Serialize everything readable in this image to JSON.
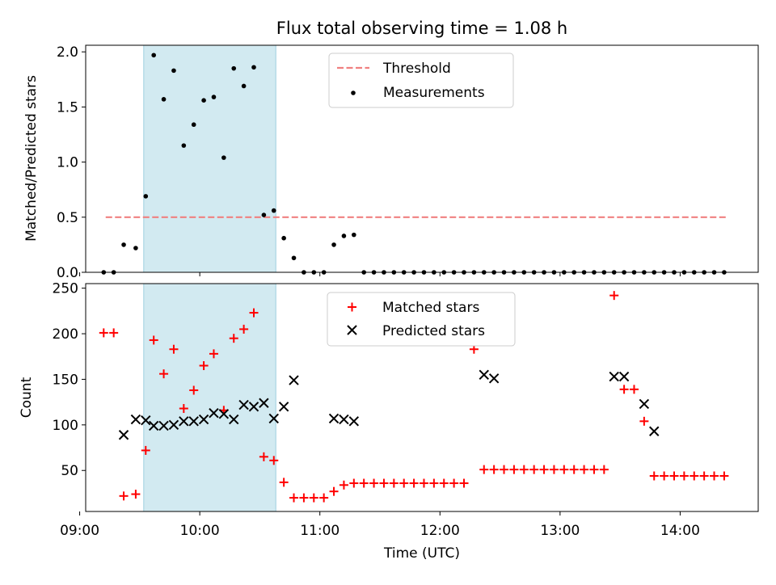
{
  "chart_data": {
    "title": "Flux total observing time = 1.08 h",
    "colors": {
      "threshold": "#f08080",
      "shade": "#add8e6",
      "matched": "#ff0000",
      "predicted": "#000000",
      "measurement": "#000000"
    },
    "shaded_interval": [
      "09:32",
      "10:38"
    ],
    "x_axis": {
      "label": "Time (UTC)",
      "range": [
        "09:03",
        "14:39"
      ],
      "ticks": [
        "09:00",
        "10:00",
        "11:00",
        "12:00",
        "13:00",
        "14:00"
      ]
    },
    "panels": [
      {
        "type": "scatter",
        "ylabel": "Matched/Predicted stars",
        "ylim": [
          0,
          2.06
        ],
        "yticks": [
          "0.0",
          "0.5",
          "1.0",
          "1.5",
          "2.0"
        ],
        "legend": {
          "position": "top-center",
          "threshold_label": "Threshold",
          "measurements_label": "Measurements"
        },
        "threshold": {
          "value": 0.5,
          "x_range": [
            "09:13",
            "14:23"
          ]
        },
        "series": [
          {
            "name": "Measurements",
            "x": [
              "09:12",
              "09:17",
              "09:22",
              "09:28",
              "09:33",
              "09:37",
              "09:42",
              "09:47",
              "09:52",
              "09:57",
              "10:02",
              "10:07",
              "10:12",
              "10:17",
              "10:22",
              "10:27",
              "10:32",
              "10:37",
              "10:42",
              "10:47",
              "10:52",
              "10:57",
              "11:02",
              "11:07",
              "11:12",
              "11:17",
              "11:22",
              "11:27",
              "11:32",
              "11:37",
              "11:42",
              "11:47",
              "11:52",
              "11:57",
              "12:02",
              "12:07",
              "12:12",
              "12:17",
              "12:22",
              "12:27",
              "12:32",
              "12:37",
              "12:42",
              "12:47",
              "12:52",
              "12:57",
              "13:02",
              "13:07",
              "13:12",
              "13:17",
              "13:22",
              "13:27",
              "13:32",
              "13:37",
              "13:42",
              "13:47",
              "13:52",
              "13:57",
              "14:02",
              "14:07",
              "14:12",
              "14:17",
              "14:22"
            ],
            "values": [
              0,
              0,
              0.25,
              0.22,
              0.69,
              1.97,
              1.57,
              1.83,
              1.15,
              1.34,
              1.56,
              1.59,
              1.04,
              1.85,
              1.69,
              1.86,
              0.52,
              0.56,
              0.31,
              0.13,
              0,
              0,
              0,
              0.25,
              0.33,
              0.34,
              0,
              0,
              0,
              0,
              0,
              0,
              0,
              0,
              0,
              0,
              0,
              0,
              0,
              0,
              0,
              0,
              0,
              0,
              0,
              0,
              0,
              0,
              0,
              0,
              0,
              0,
              0,
              0,
              0,
              0,
              0,
              0,
              0,
              0,
              0,
              0,
              0
            ]
          }
        ]
      },
      {
        "type": "scatter",
        "ylabel": "Count",
        "ylim": [
          5,
          255
        ],
        "yticks": [
          "50",
          "100",
          "150",
          "200",
          "250"
        ],
        "legend": {
          "position": "top-center",
          "matched_label": "Matched stars",
          "predicted_label": "Predicted stars"
        },
        "series": [
          {
            "name": "Matched stars",
            "x": [
              "09:12",
              "09:17",
              "09:22",
              "09:28",
              "09:33",
              "09:37",
              "09:42",
              "09:47",
              "09:52",
              "09:57",
              "10:02",
              "10:07",
              "10:12",
              "10:17",
              "10:22",
              "10:27",
              "10:32",
              "10:37",
              "10:42",
              "10:47",
              "10:52",
              "10:57",
              "11:02",
              "11:07",
              "11:12",
              "11:17",
              "11:22",
              "11:27",
              "11:32",
              "11:37",
              "11:42",
              "11:47",
              "11:52",
              "11:57",
              "12:02",
              "12:07",
              "12:12",
              "12:17",
              "12:22",
              "12:27",
              "12:32",
              "12:37",
              "12:42",
              "12:47",
              "12:52",
              "12:57",
              "13:02",
              "13:07",
              "13:12",
              "13:17",
              "13:22",
              "13:27",
              "13:32",
              "13:37",
              "13:42",
              "13:47",
              "13:52",
              "13:57",
              "14:02",
              "14:07",
              "14:12",
              "14:17",
              "14:22"
            ],
            "values": [
              201,
              201,
              22,
              24,
              72,
              193,
              156,
              183,
              118,
              138,
              165,
              178,
              116,
              195,
              205,
              223,
              65,
              61,
              37,
              20,
              20,
              20,
              20,
              27,
              34,
              36,
              36,
              36,
              36,
              36,
              36,
              36,
              36,
              36,
              36,
              36,
              36,
              183,
              51,
              51,
              51,
              51,
              51,
              51,
              51,
              51,
              51,
              51,
              51,
              51,
              51,
              242,
              139,
              139,
              104,
              44,
              44,
              44,
              44,
              44,
              44,
              44,
              44
            ]
          },
          {
            "name": "Predicted stars",
            "x": [
              "09:22",
              "09:28",
              "09:33",
              "09:37",
              "09:42",
              "09:47",
              "09:52",
              "09:57",
              "10:02",
              "10:07",
              "10:12",
              "10:17",
              "10:22",
              "10:27",
              "10:32",
              "10:37",
              "10:42",
              "10:47",
              "11:07",
              "11:12",
              "11:17",
              "12:22",
              "12:27",
              "13:27",
              "13:32",
              "13:42",
              "13:47"
            ],
            "values": [
              89,
              106,
              105,
              99,
              99,
              100,
              104,
              104,
              106,
              113,
              112,
              106,
              122,
              120,
              124,
              107,
              120,
              149,
              107,
              106,
              104,
              155,
              151,
              153,
              153,
              123,
              93
            ]
          }
        ]
      }
    ]
  }
}
